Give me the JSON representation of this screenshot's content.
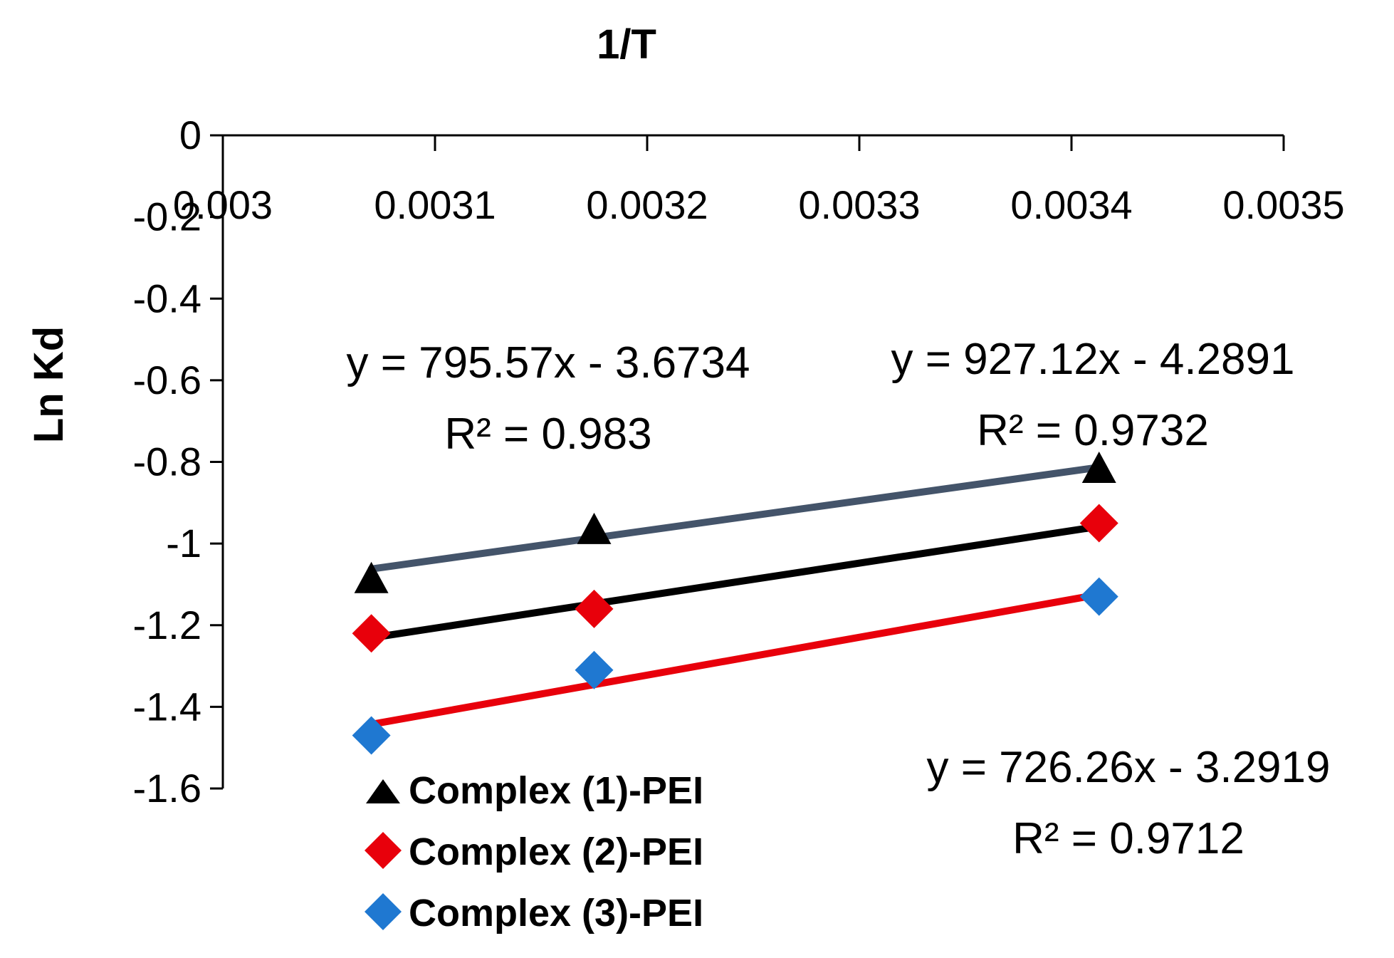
{
  "chart_data": {
    "type": "scatter",
    "xlabel": "1/T",
    "ylabel": "Ln Kd",
    "xlim": [
      0.003,
      0.0035
    ],
    "ylim": [
      -1.6,
      0
    ],
    "x_ticks": [
      0.003,
      0.0031,
      0.0032,
      0.0033,
      0.0034,
      0.0035
    ],
    "x_tick_labels": [
      "0.003",
      "0.0031",
      "0.0032",
      "0.0033",
      "0.0034",
      "0.0035"
    ],
    "y_ticks": [
      0,
      -0.2,
      -0.4,
      -0.6,
      -0.8,
      -1,
      -1.2,
      -1.4,
      -1.6
    ],
    "y_tick_labels": [
      "0",
      "-0.2",
      "-0.4",
      "-0.6",
      "-0.8",
      "-1",
      "-1.2",
      "-1.4",
      "-1.6"
    ],
    "grid": false,
    "legend_position": "bottom-left",
    "series": [
      {
        "name": "Complex (1)-PEI",
        "marker": "triangle",
        "color": "#000000",
        "trend_color": "#000000",
        "x": [
          0.00307,
          0.003175,
          0.003413
        ],
        "y": [
          -1.09,
          -0.97,
          -0.82
        ],
        "trendline": {
          "slope": 795.57,
          "intercept": -3.6734
        },
        "equation": "y = 795.57x - 3.6734",
        "r2": "R² = 0.983"
      },
      {
        "name": "Complex (2)-PEI",
        "marker": "diamond",
        "color": "#E8000B",
        "trend_color": "#E8000B",
        "x": [
          0.00307,
          0.003175,
          0.003413
        ],
        "y": [
          -1.22,
          -1.16,
          -0.95
        ],
        "trendline": {
          "slope": 927.12,
          "intercept": -4.2891
        },
        "equation": "y = 927.12x - 4.2891",
        "r2": "R² = 0.9732"
      },
      {
        "name": "Complex (3)-PEI",
        "marker": "diamond",
        "color": "#1F78D1",
        "trend_color": "#44546A",
        "x": [
          0.00307,
          0.003175,
          0.003413
        ],
        "y": [
          -1.47,
          -1.31,
          -1.13
        ],
        "trendline": {
          "slope": 726.26,
          "intercept": -3.2919
        },
        "equation": "y = 726.26x - 3.2919",
        "r2": "R² = 0.9712"
      }
    ]
  }
}
